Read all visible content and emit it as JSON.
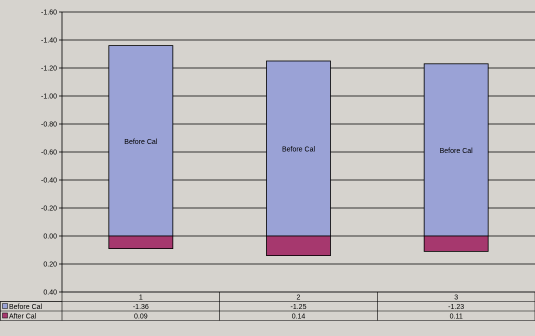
{
  "chart_data": {
    "type": "bar",
    "categories": [
      "1",
      "2",
      "3"
    ],
    "y_axis": {
      "reversed": true,
      "range": [
        -1.6,
        0.4
      ],
      "tick_labels": [
        "-1.60",
        "-1.40",
        "-1.20",
        "-1.00",
        "-0.80",
        "-0.60",
        "-0.40",
        "-0.20",
        "0.00",
        "0.20",
        "0.40"
      ],
      "tick_values": [
        -1.6,
        -1.4,
        -1.2,
        -1.0,
        -0.8,
        -0.6,
        -0.4,
        -0.2,
        0.0,
        0.2,
        0.4
      ]
    },
    "grid": true,
    "series": [
      {
        "name": "Before Cal",
        "values": [
          -1.36,
          -1.25,
          -1.23
        ],
        "table_values": [
          "-1.36",
          "-1.25",
          "-1.23"
        ],
        "color": "#9aa2d6",
        "bar_label": "Before Cal"
      },
      {
        "name": "After Cal",
        "values": [
          0.09,
          0.14,
          0.11
        ],
        "table_values": [
          "0.09",
          "0.14",
          "0.11"
        ],
        "color": "#a6386e"
      }
    ],
    "legend": "data-table"
  }
}
